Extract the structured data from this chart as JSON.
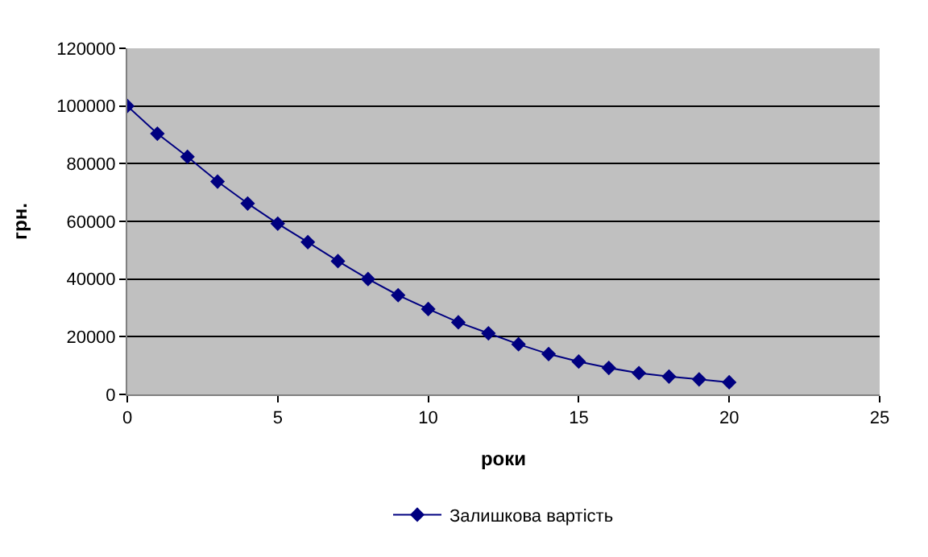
{
  "chart_data": {
    "type": "line",
    "xlabel": "роки",
    "ylabel": "грн.",
    "x": [
      0,
      1,
      2,
      3,
      4,
      5,
      6,
      7,
      8,
      9,
      10,
      11,
      12,
      13,
      14,
      15,
      16,
      17,
      18,
      19,
      20
    ],
    "series": [
      {
        "name": "Залишкова вартість",
        "color": "#000080",
        "values": [
          100000,
          90400,
          82400,
          73800,
          66200,
          59200,
          52800,
          46200,
          40000,
          34400,
          29600,
          25000,
          21200,
          17400,
          14000,
          11400,
          9200,
          7400,
          6200,
          5200,
          4200
        ]
      }
    ],
    "xlim": [
      0,
      25
    ],
    "xticks": [
      0,
      5,
      10,
      15,
      20,
      25
    ],
    "ylim": [
      0,
      120000
    ],
    "yticks": [
      0,
      20000,
      40000,
      60000,
      80000,
      100000,
      120000
    ],
    "grid": "y",
    "legend": "bottom",
    "marker": "diamond",
    "line_style": "solid"
  }
}
